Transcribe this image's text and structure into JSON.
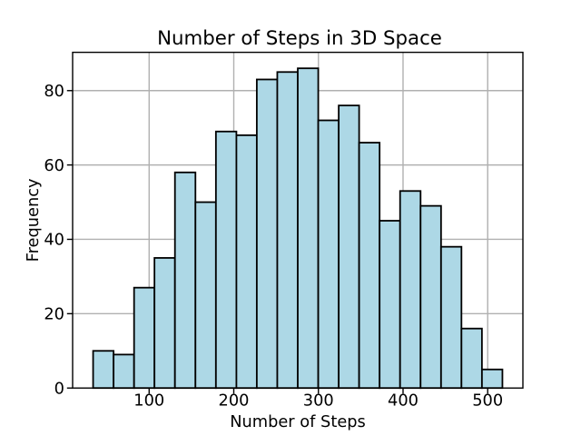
{
  "chart_data": {
    "type": "bar",
    "subtype": "histogram",
    "title": "Number of Steps in 3D Space",
    "xlabel": "Number of Steps",
    "ylabel": "Frequency",
    "bin_edges": [
      33.8,
      58.0,
      82.2,
      106.3,
      130.5,
      154.7,
      178.9,
      203.1,
      227.2,
      251.4,
      275.6,
      299.8,
      324.0,
      348.1,
      372.3,
      396.5,
      420.7,
      444.9,
      469.0,
      493.2,
      517.4
    ],
    "counts": [
      10,
      9,
      27,
      35,
      58,
      50,
      69,
      68,
      83,
      85,
      86,
      72,
      76,
      66,
      45,
      53,
      49,
      38,
      16,
      5
    ],
    "xticks": [
      "100",
      "200",
      "300",
      "400",
      "500"
    ],
    "xtick_values": [
      100,
      200,
      300,
      400,
      500
    ],
    "yticks": [
      "0",
      "20",
      "40",
      "60",
      "80"
    ],
    "ytick_values": [
      0,
      20,
      40,
      60,
      80
    ],
    "xlim": [
      9.6,
      541.6
    ],
    "ylim": [
      0,
      90.3
    ],
    "grid": true,
    "legend": "none",
    "colors": {
      "bar_fill": "#ADD8E6",
      "bar_edge": "#000000",
      "grid": "#B0B0B0",
      "spine": "#000000",
      "background": "#FFFFFF"
    }
  }
}
